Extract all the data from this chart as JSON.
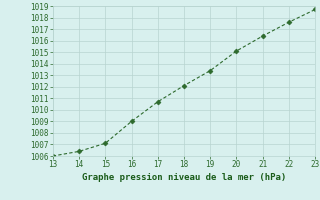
{
  "x": [
    13,
    14,
    15,
    16,
    17,
    18,
    19,
    20,
    21,
    22,
    23
  ],
  "y": [
    1006.0,
    1006.4,
    1007.1,
    1009.0,
    1010.7,
    1012.1,
    1013.4,
    1015.1,
    1016.4,
    1017.6,
    1018.7
  ],
  "xlim": [
    13,
    23
  ],
  "ylim": [
    1006,
    1019
  ],
  "xticks": [
    13,
    14,
    15,
    16,
    17,
    18,
    19,
    20,
    21,
    22,
    23
  ],
  "yticks": [
    1006,
    1007,
    1008,
    1009,
    1010,
    1011,
    1012,
    1013,
    1014,
    1015,
    1016,
    1017,
    1018,
    1019
  ],
  "line_color": "#2d6a2d",
  "marker": "D",
  "marker_size": 2.5,
  "bg_color": "#d8f0ee",
  "grid_color": "#b8d4d0",
  "xlabel": "Graphe pression niveau de la mer (hPa)",
  "xlabel_color": "#1a5c1a",
  "tick_label_color": "#2d6a2d"
}
